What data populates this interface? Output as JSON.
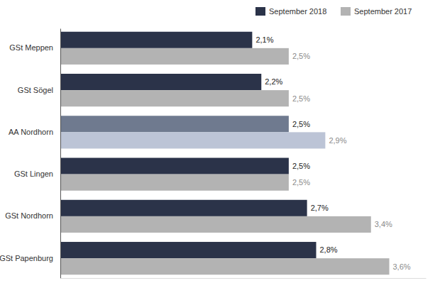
{
  "chart_data": {
    "type": "bar",
    "orientation": "horizontal",
    "categories": [
      "GSt Meppen",
      "GSt Sögel",
      "AA Nordhorn",
      "GSt Lingen",
      "GSt Nordhorn",
      "GSt Papenburg"
    ],
    "series": [
      {
        "name": "September 2018",
        "values": [
          2.1,
          2.2,
          2.5,
          2.5,
          2.7,
          2.8
        ],
        "value_labels": [
          "2,1%",
          "2,2%",
          "2,5%",
          "2,5%",
          "2,7%",
          "2,8%"
        ],
        "colors": [
          "#2b3349",
          "#2b3349",
          "#6f7a8f",
          "#2b3349",
          "#2b3349",
          "#2b3349"
        ]
      },
      {
        "name": "September 2017",
        "values": [
          2.5,
          2.5,
          2.9,
          2.5,
          3.4,
          3.6
        ],
        "value_labels": [
          "2,5%",
          "2,5%",
          "2,9%",
          "2,5%",
          "3,4%",
          "3,6%"
        ],
        "colors": [
          "#b3b3b3",
          "#b3b3b3",
          "#bcc4d6",
          "#b3b3b3",
          "#b3b3b3",
          "#b3b3b3"
        ]
      }
    ],
    "xlim": [
      0,
      4
    ],
    "xticks": [],
    "grid": false,
    "data_labels": true,
    "tick_labels": "y",
    "legend": "upper right"
  }
}
